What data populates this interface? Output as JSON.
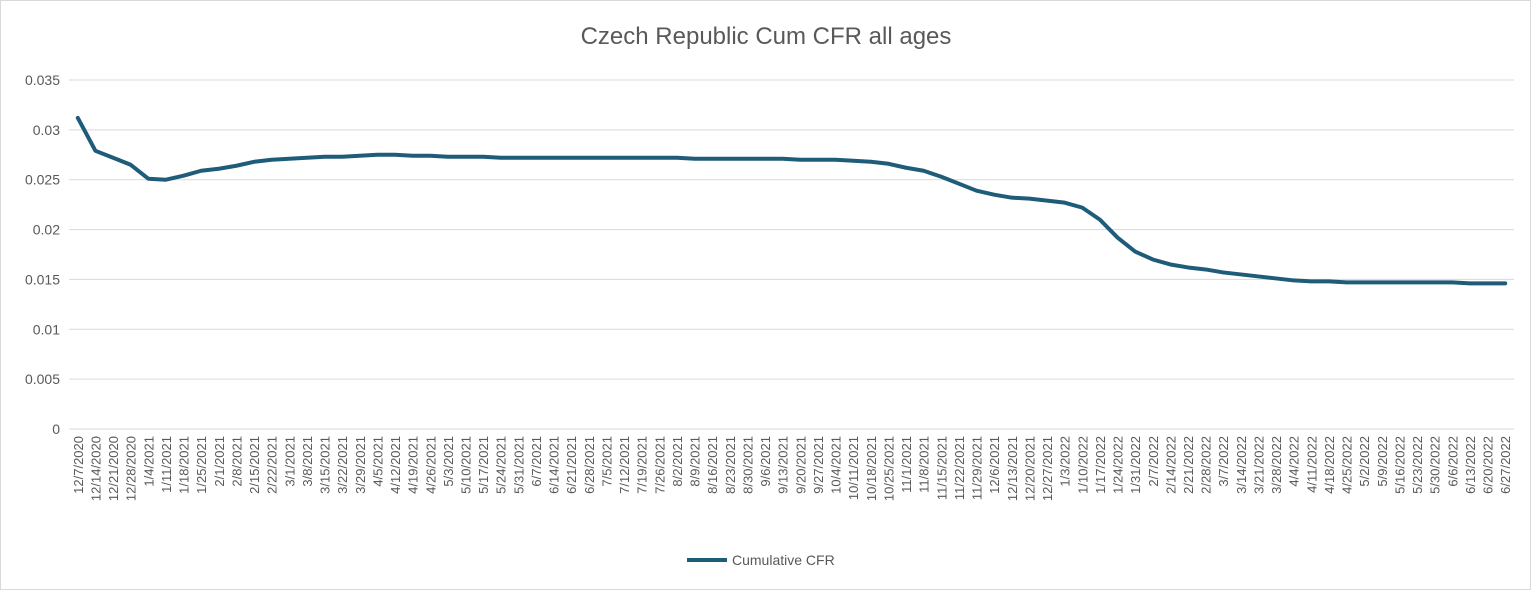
{
  "chart_data": {
    "type": "line",
    "title": "Czech Republic Cum CFR all ages",
    "xlabel": "",
    "ylabel": "",
    "ylim": [
      0,
      0.035
    ],
    "yticks": [
      "0.035",
      "0.03",
      "0.025",
      "0.02",
      "0.015",
      "0.01",
      "0.005",
      "0"
    ],
    "ytick_values": [
      0.035,
      0.03,
      0.025,
      0.02,
      0.015,
      0.01,
      0.005,
      0
    ],
    "grid": "horizontal",
    "legend_position": "bottom",
    "categories": [
      "12/7/2020",
      "12/14/2020",
      "12/21/2020",
      "12/28/2020",
      "1/4/2021",
      "1/11/2021",
      "1/18/2021",
      "1/25/2021",
      "2/1/2021",
      "2/8/2021",
      "2/15/2021",
      "2/22/2021",
      "3/1/2021",
      "3/8/2021",
      "3/15/2021",
      "3/22/2021",
      "3/29/2021",
      "4/5/2021",
      "4/12/2021",
      "4/19/2021",
      "4/26/2021",
      "5/3/2021",
      "5/10/2021",
      "5/17/2021",
      "5/24/2021",
      "5/31/2021",
      "6/7/2021",
      "6/14/2021",
      "6/21/2021",
      "6/28/2021",
      "7/5/2021",
      "7/12/2021",
      "7/19/2021",
      "7/26/2021",
      "8/2/2021",
      "8/9/2021",
      "8/16/2021",
      "8/23/2021",
      "8/30/2021",
      "9/6/2021",
      "9/13/2021",
      "9/20/2021",
      "9/27/2021",
      "10/4/2021",
      "10/11/2021",
      "10/18/2021",
      "10/25/2021",
      "11/1/2021",
      "11/8/2021",
      "11/15/2021",
      "11/22/2021",
      "11/29/2021",
      "12/6/2021",
      "12/13/2021",
      "12/20/2021",
      "12/27/2021",
      "1/3/2022",
      "1/10/2022",
      "1/17/2022",
      "1/24/2022",
      "1/31/2022",
      "2/7/2022",
      "2/14/2022",
      "2/21/2022",
      "2/28/2022",
      "3/7/2022",
      "3/14/2022",
      "3/21/2022",
      "3/28/2022",
      "4/4/2022",
      "4/11/2022",
      "4/18/2022",
      "4/25/2022",
      "5/2/2022",
      "5/9/2022",
      "5/16/2022",
      "5/23/2022",
      "5/30/2022",
      "6/6/2022",
      "6/13/2022",
      "6/20/2022",
      "6/27/2022"
    ],
    "series": [
      {
        "name": "Cumulative CFR",
        "color": "#1f5c7a",
        "values": [
          0.0312,
          0.0279,
          0.0272,
          0.0265,
          0.0251,
          0.025,
          0.0254,
          0.0259,
          0.0261,
          0.0264,
          0.0268,
          0.027,
          0.0271,
          0.0272,
          0.0273,
          0.0273,
          0.0274,
          0.0275,
          0.0275,
          0.0274,
          0.0274,
          0.0273,
          0.0273,
          0.0273,
          0.0272,
          0.0272,
          0.0272,
          0.0272,
          0.0272,
          0.0272,
          0.0272,
          0.0272,
          0.0272,
          0.0272,
          0.0272,
          0.0271,
          0.0271,
          0.0271,
          0.0271,
          0.0271,
          0.0271,
          0.027,
          0.027,
          0.027,
          0.0269,
          0.0268,
          0.0266,
          0.0262,
          0.0259,
          0.0253,
          0.0246,
          0.0239,
          0.0235,
          0.0232,
          0.0231,
          0.0229,
          0.0227,
          0.0222,
          0.021,
          0.0192,
          0.0178,
          0.017,
          0.0165,
          0.0162,
          0.016,
          0.0157,
          0.0155,
          0.0153,
          0.0151,
          0.0149,
          0.0148,
          0.0148,
          0.0147,
          0.0147,
          0.0147,
          0.0147,
          0.0147,
          0.0147,
          0.0147,
          0.0146,
          0.0146,
          0.0146
        ]
      }
    ]
  }
}
